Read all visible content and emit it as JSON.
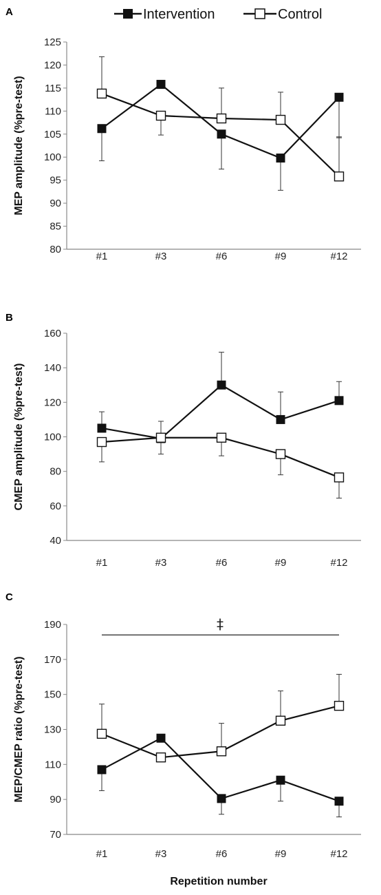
{
  "legend": [
    {
      "label": "Intervention",
      "marker": "filled-square"
    },
    {
      "label": "Control",
      "marker": "open-square"
    }
  ],
  "colors": {
    "line": "#111111",
    "axis": "#888888",
    "open_fill": "#ffffff",
    "filled": "#111111"
  },
  "chart_data": [
    {
      "type": "line",
      "panel_label": "A",
      "categories": [
        "#1",
        "#3",
        "#6",
        "#9",
        "#12"
      ],
      "ylabel": "MEP amplitude (%pre-test)",
      "xlabel": "",
      "ylim": [
        80,
        125
      ],
      "yticks": [
        80,
        85,
        90,
        95,
        100,
        105,
        110,
        115,
        120,
        125
      ],
      "series": [
        {
          "name": "Intervention",
          "values": [
            106.2,
            115.8,
            105.0,
            99.8,
            113.0
          ],
          "errors": [
            7.0,
            0.8,
            7.6,
            7.0,
            8.8
          ],
          "error_side": [
            "down",
            "up",
            "down",
            "down",
            "down"
          ]
        },
        {
          "name": "Control",
          "values": [
            113.8,
            109.0,
            108.4,
            108.1,
            95.8
          ],
          "errors": [
            8.0,
            4.2,
            6.6,
            6.0,
            8.6
          ],
          "error_side": [
            "up",
            "down",
            "up",
            "up",
            "up"
          ]
        }
      ]
    },
    {
      "type": "line",
      "panel_label": "B",
      "categories": [
        "#1",
        "#3",
        "#6",
        "#9",
        "#12"
      ],
      "ylabel": "CMEP amplitude (%pre-test)",
      "xlabel": "",
      "ylim": [
        40,
        160
      ],
      "yticks": [
        40,
        60,
        80,
        100,
        120,
        140,
        160
      ],
      "series": [
        {
          "name": "Intervention",
          "values": [
            105,
            99,
            130,
            110,
            121
          ],
          "errors": [
            9.5,
            10,
            19,
            16,
            11
          ],
          "error_side": [
            "up",
            "up",
            "up",
            "up",
            "up"
          ]
        },
        {
          "name": "Control",
          "values": [
            97,
            99.5,
            99.5,
            90,
            76.5
          ],
          "errors": [
            11.5,
            9.5,
            10.5,
            12,
            12
          ],
          "error_side": [
            "down",
            "down",
            "down",
            "down",
            "down"
          ]
        }
      ]
    },
    {
      "type": "line",
      "panel_label": "C",
      "categories": [
        "#1",
        "#3",
        "#6",
        "#9",
        "#12"
      ],
      "ylabel": "MEP/CMEP ratio (%pre-test)",
      "xlabel": "Repetition number",
      "ylim": [
        70,
        190
      ],
      "yticks": [
        70,
        90,
        110,
        130,
        150,
        170,
        190
      ],
      "significance": {
        "symbol": "‡",
        "value": 184
      },
      "series": [
        {
          "name": "Intervention",
          "values": [
            107,
            125,
            90.5,
            101,
            89
          ],
          "errors": [
            12,
            1,
            9,
            12,
            9
          ],
          "error_side": [
            "down",
            "up",
            "down",
            "down",
            "down"
          ]
        },
        {
          "name": "Control",
          "values": [
            127.5,
            114,
            117.5,
            135,
            143.5
          ],
          "errors": [
            17,
            1,
            16,
            17,
            18
          ],
          "error_side": [
            "up",
            "down",
            "up",
            "up",
            "up"
          ]
        }
      ]
    }
  ]
}
